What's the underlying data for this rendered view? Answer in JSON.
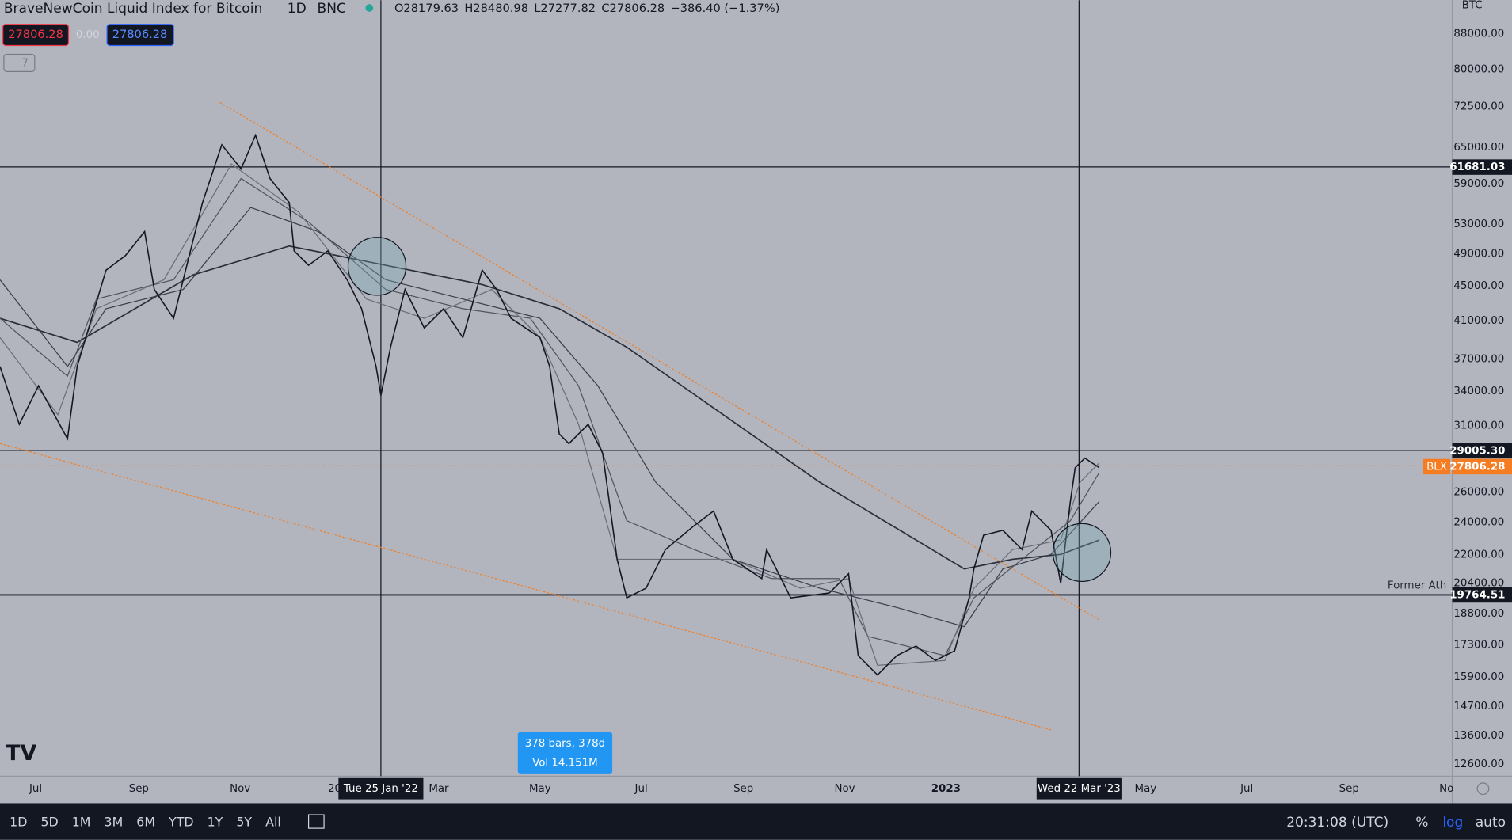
{
  "header": {
    "title": "BraveNewCoin Liquid Index for Bitcoin",
    "interval": "1D",
    "exchange": "BNC",
    "ohlc": [
      "O28179.63",
      "H28480.98",
      "L27277.82",
      "C27806.28",
      "−386.40 (−1.37%)"
    ],
    "sell": "27806.28",
    "spread": "0.00",
    "buy": "27806.28",
    "indicators": "7"
  },
  "currency": "BTC",
  "price_axis": [
    "88000.00",
    "80000.00",
    "72500.00",
    "65000.00",
    "59000.00",
    "53000.00",
    "49000.00",
    "45000.00",
    "41000.00",
    "37000.00",
    "34000.00",
    "31000.00",
    "26000.00",
    "24000.00",
    "22000.00",
    "20400.00",
    "18800.00",
    "17300.00",
    "15900.00",
    "14700.00",
    "13600.00",
    "12600.00"
  ],
  "level_labels": [
    "61681.03",
    "29005.30",
    "19764.51"
  ],
  "last_price": {
    "symbol": "BLX",
    "price": "27806.28"
  },
  "annotation": "Former Ath",
  "time_axis": [
    "Jul",
    "Sep",
    "Nov",
    "20",
    "Mar",
    "May",
    "Jul",
    "Sep",
    "Nov",
    "2023",
    "May",
    "Jul",
    "Sep",
    "No"
  ],
  "crosshair_labels": [
    "Tue 25 Jan '22",
    "Wed 22 Mar '23"
  ],
  "range_tooltip": [
    "378 bars, 378d",
    "Vol 14.151M"
  ],
  "toolbar": {
    "ranges": [
      "1D",
      "5D",
      "1M",
      "3M",
      "6M",
      "YTD",
      "1Y",
      "5Y",
      "All"
    ],
    "clock": "20:31:08 (UTC)",
    "percent": "%",
    "log": "log",
    "auto": "auto"
  }
}
